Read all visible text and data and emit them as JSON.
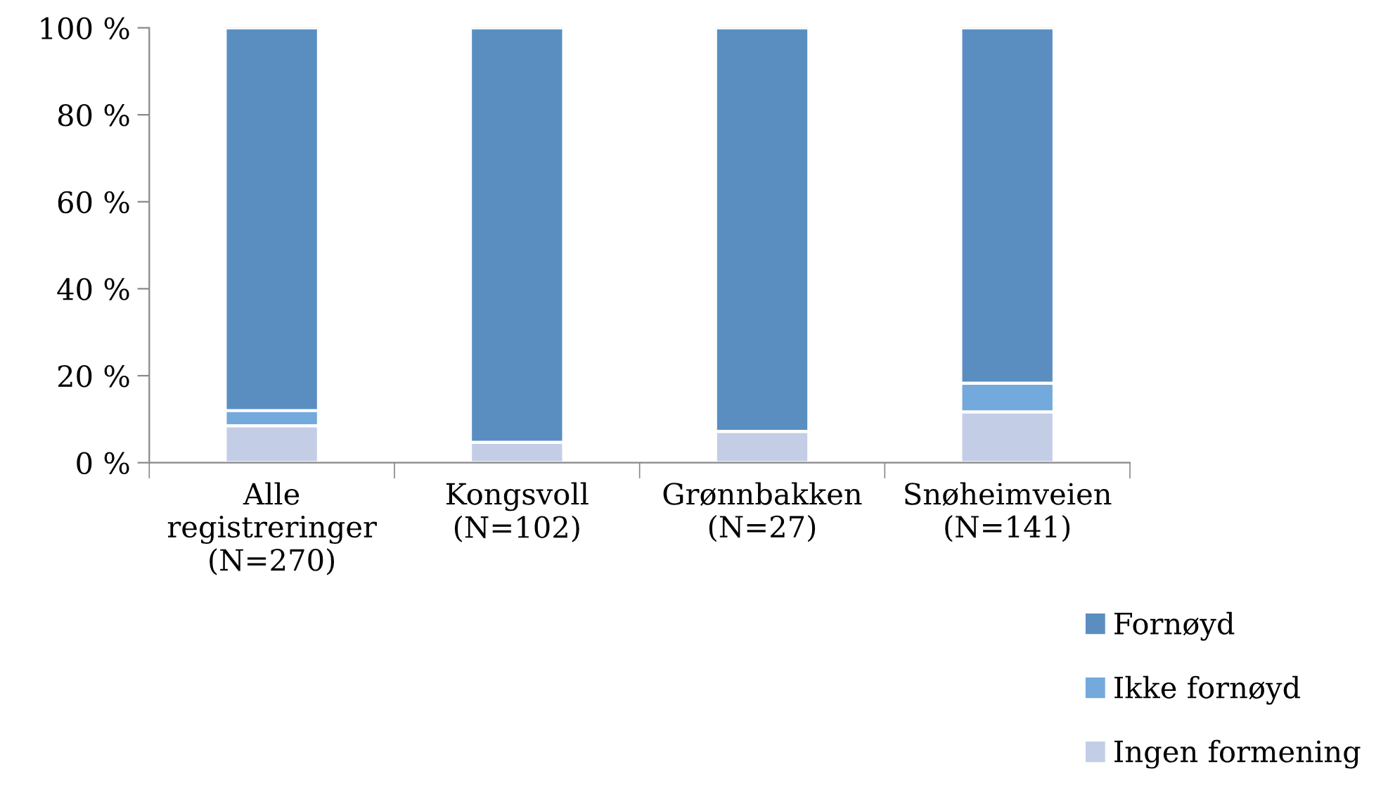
{
  "chart_data": {
    "type": "bar",
    "stacked": true,
    "categories": [
      "Alle\nregistreringer\n(N=270)",
      "Kongsvoll\n(N=102)",
      "Grønnbakken\n(N=27)",
      "Snøheimveien\n(N=141)"
    ],
    "series": [
      {
        "name": "Ingen formening",
        "color": "#c3cee6",
        "values": [
          8.5,
          4.7,
          7.2,
          11.7
        ]
      },
      {
        "name": "Ikke fornøyd",
        "color": "#74a9dc",
        "values": [
          3.5,
          0,
          0,
          6.6
        ]
      },
      {
        "name": "Fornøyd",
        "color": "#5b8ec0",
        "values": [
          88.0,
          95.3,
          92.8,
          81.7
        ]
      }
    ],
    "ylim": [
      0,
      100
    ],
    "yticks": [
      {
        "value": 0,
        "label": "0 %"
      },
      {
        "value": 20,
        "label": "20 %"
      },
      {
        "value": 40,
        "label": "40 %"
      },
      {
        "value": 60,
        "label": "60 %"
      },
      {
        "value": 80,
        "label": "80 %"
      },
      {
        "value": 100,
        "label": "100 %"
      }
    ],
    "grid": false,
    "legend": "bottom right"
  }
}
